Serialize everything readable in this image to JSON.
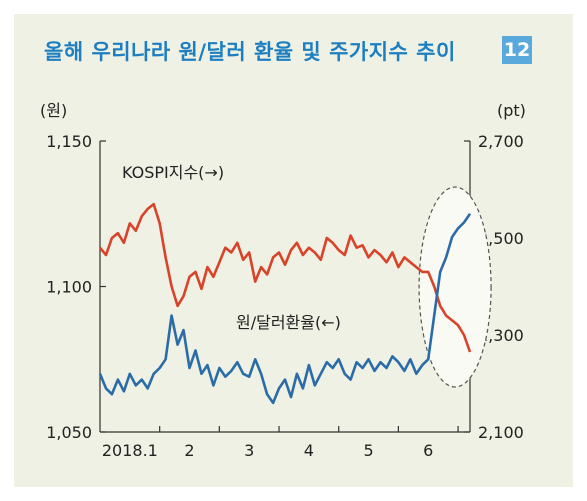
{
  "header": {
    "title": "올해 우리나라 원/달러 환율 및 주가지수 추이",
    "badge": "12"
  },
  "chart_data": {
    "type": "line",
    "title": "올해 우리나라 원/달러 환율 및 주가지수 추이",
    "left_axis": {
      "unit": "(원)",
      "range": [
        1050,
        1150
      ],
      "ticks": [
        "1,150",
        "1,100",
        "1,050"
      ]
    },
    "right_axis": {
      "unit": "(pt)",
      "range": [
        2100,
        2700
      ],
      "ticks": [
        "2,700",
        "2,500",
        "2,300",
        "2,100"
      ]
    },
    "x_axis": {
      "range": [
        0,
        6.2
      ],
      "tick_labels": [
        "2018.1",
        "2",
        "3",
        "4",
        "5",
        "6"
      ]
    },
    "colors": {
      "kospi": "#d8432a",
      "fx": "#2b6ca8"
    },
    "series": [
      {
        "name": "KOSPI지수(→)",
        "axis": "right",
        "color": "#d8432a",
        "label": "KOSPI지수(→)",
        "x": [
          0,
          0.1,
          0.2,
          0.3,
          0.4,
          0.5,
          0.6,
          0.7,
          0.8,
          0.9,
          1.0,
          1.1,
          1.2,
          1.3,
          1.4,
          1.5,
          1.6,
          1.7,
          1.8,
          1.9,
          2.0,
          2.1,
          2.2,
          2.3,
          2.4,
          2.5,
          2.6,
          2.7,
          2.8,
          2.9,
          3.0,
          3.1,
          3.2,
          3.3,
          3.4,
          3.5,
          3.6,
          3.7,
          3.8,
          3.9,
          4.0,
          4.1,
          4.2,
          4.3,
          4.4,
          4.5,
          4.6,
          4.7,
          4.8,
          4.9,
          5.0,
          5.1,
          5.2,
          5.3,
          5.4,
          5.5,
          5.6,
          5.7,
          5.8,
          5.9,
          6.0,
          6.1,
          6.2
        ],
        "values": [
          2480,
          2465,
          2500,
          2510,
          2490,
          2530,
          2515,
          2545,
          2560,
          2570,
          2530,
          2460,
          2400,
          2360,
          2380,
          2420,
          2430,
          2395,
          2440,
          2420,
          2450,
          2480,
          2470,
          2490,
          2455,
          2470,
          2410,
          2440,
          2425,
          2460,
          2470,
          2445,
          2475,
          2490,
          2465,
          2480,
          2470,
          2455,
          2500,
          2490,
          2475,
          2465,
          2505,
          2480,
          2485,
          2460,
          2475,
          2465,
          2450,
          2470,
          2440,
          2460,
          2450,
          2440,
          2430,
          2430,
          2400,
          2360,
          2340,
          2330,
          2320,
          2300,
          2265
        ]
      },
      {
        "name": "원/달러환율(←)",
        "axis": "left",
        "color": "#2b6ca8",
        "label": "원/달러환율(←)",
        "x": [
          0,
          0.1,
          0.2,
          0.3,
          0.4,
          0.5,
          0.6,
          0.7,
          0.8,
          0.9,
          1.0,
          1.1,
          1.2,
          1.3,
          1.4,
          1.5,
          1.6,
          1.7,
          1.8,
          1.9,
          2.0,
          2.1,
          2.2,
          2.3,
          2.4,
          2.5,
          2.6,
          2.7,
          2.8,
          2.9,
          3.0,
          3.1,
          3.2,
          3.3,
          3.4,
          3.5,
          3.6,
          3.7,
          3.8,
          3.9,
          4.0,
          4.1,
          4.2,
          4.3,
          4.4,
          4.5,
          4.6,
          4.7,
          4.8,
          4.9,
          5.0,
          5.1,
          5.2,
          5.3,
          5.4,
          5.5,
          5.6,
          5.7,
          5.8,
          5.9,
          6.0,
          6.1,
          6.2
        ],
        "values": [
          1070,
          1065,
          1063,
          1068,
          1064,
          1070,
          1066,
          1068,
          1065,
          1070,
          1072,
          1075,
          1090,
          1080,
          1085,
          1072,
          1078,
          1070,
          1073,
          1066,
          1072,
          1069,
          1071,
          1074,
          1070,
          1069,
          1075,
          1070,
          1063,
          1060,
          1065,
          1068,
          1062,
          1070,
          1065,
          1073,
          1066,
          1070,
          1074,
          1072,
          1075,
          1070,
          1068,
          1074,
          1072,
          1075,
          1071,
          1074,
          1072,
          1076,
          1074,
          1071,
          1075,
          1070,
          1073,
          1075,
          1090,
          1105,
          1110,
          1117,
          1120,
          1122,
          1125
        ]
      }
    ],
    "annotation": {
      "type": "ellipse",
      "label": ""
    },
    "grid": false
  }
}
